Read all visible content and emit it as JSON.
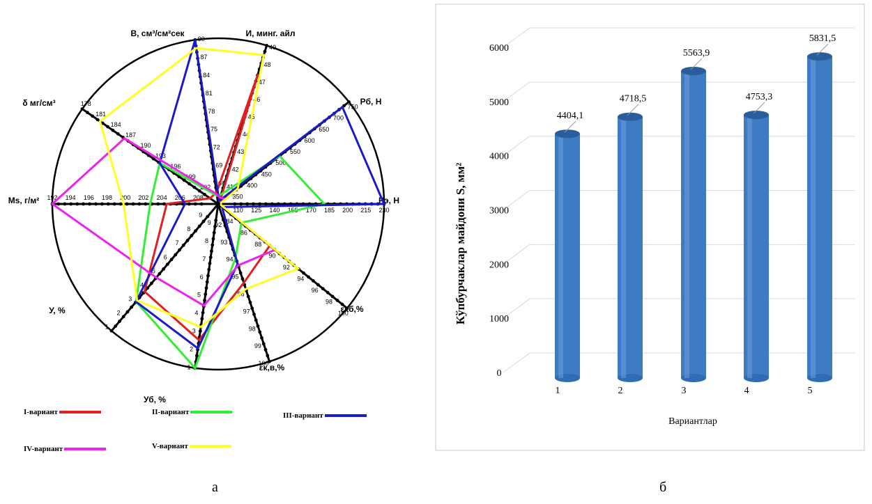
{
  "sub_labels": {
    "left": "а",
    "right": "б"
  },
  "radar": {
    "axes": [
      {
        "label": "В, см³/см²сек",
        "ticks": [
          "90",
          "87",
          "84",
          "81",
          "78",
          "75",
          "72",
          "69",
          "66"
        ]
      },
      {
        "label": "И,  минг. айл",
        "ticks": [
          "49",
          "48",
          "47",
          "46",
          "45",
          "44",
          "43",
          "42",
          "41"
        ]
      },
      {
        "label": "Pб,  Н",
        "ticks": [
          "750",
          "700",
          "650",
          "600",
          "550",
          "500",
          "450",
          "400",
          "350"
        ]
      },
      {
        "label": "Pэ,  Н",
        "ticks": [
          "230",
          "215",
          "200",
          "185",
          "170",
          "155",
          "140",
          "125",
          "110"
        ]
      },
      {
        "label": "εкб,%",
        "ticks": [
          "100",
          "98",
          "96",
          "94",
          "92",
          "90",
          "88",
          "86",
          "84"
        ]
      },
      {
        "label": "εк,в,%",
        "ticks": [
          "100",
          "99",
          "98",
          "97",
          "96",
          "95",
          "94",
          "93",
          "92"
        ]
      },
      {
        "label": "Уб, %",
        "ticks": [
          "1",
          "2",
          "3",
          "4",
          "5",
          "6",
          "7",
          "8",
          "9"
        ]
      },
      {
        "label": "У, %",
        "ticks": [
          "1",
          "2",
          "3",
          "4",
          "5",
          "6",
          "7",
          "8",
          "9"
        ]
      },
      {
        "label": "Ms, г/м²",
        "ticks": [
          "192",
          "194",
          "196",
          "198",
          "200",
          "202",
          "204",
          "206",
          "208"
        ]
      },
      {
        "label": "δ мг/см³",
        "ticks": [
          "178",
          "181",
          "184",
          "187",
          "190",
          "193",
          "196",
          "199",
          "202"
        ]
      }
    ],
    "series": [
      {
        "name": "I-вариант",
        "color": "#e02020",
        "values": [
          0.07,
          0.82,
          0.01,
          0.01,
          0.4,
          0.5,
          0.83,
          0.69,
          0.31,
          0.06
        ]
      },
      {
        "name": "II-вариант",
        "color": "#33ee33",
        "values": [
          0.05,
          0.06,
          0.47,
          0.64,
          0.18,
          0.34,
          1.0,
          0.77,
          0.41,
          0.43
        ]
      },
      {
        "name": "III-вариант",
        "color": "#1a1acc",
        "values": [
          1.0,
          0.02,
          0.95,
          1.0,
          0.03,
          0.38,
          0.88,
          0.77,
          0.2,
          0.43
        ]
      },
      {
        "name": "IV-вариант",
        "color": "#ee22ee",
        "values": [
          0.06,
          0.04,
          0.05,
          0.01,
          0.44,
          0.39,
          0.62,
          0.58,
          1.0,
          0.69
        ]
      },
      {
        "name": "V-вариант",
        "color": "#ffff22",
        "values": [
          0.95,
          0.94,
          0.15,
          0.01,
          0.62,
          0.54,
          0.75,
          0.76,
          0.57,
          0.87
        ]
      }
    ]
  },
  "chart_data": {
    "type": "bar",
    "categories": [
      "1",
      "2",
      "3",
      "4",
      "5"
    ],
    "values": [
      4404.1,
      4718.5,
      5563.9,
      4753.3,
      5831.5
    ],
    "value_labels": [
      "4404,1",
      "4718,5",
      "5563,9",
      "4753,3",
      "5831,5"
    ],
    "yticks": [
      "0",
      "1000",
      "2000",
      "3000",
      "4000",
      "5000",
      "6000"
    ],
    "ylim": [
      0,
      6000
    ],
    "xlabel": "Вариантлар",
    "ylabel": "Кўпбурчаклар  майдони  S, мм²",
    "bar_color": "#3d7cc4",
    "grid": true
  }
}
